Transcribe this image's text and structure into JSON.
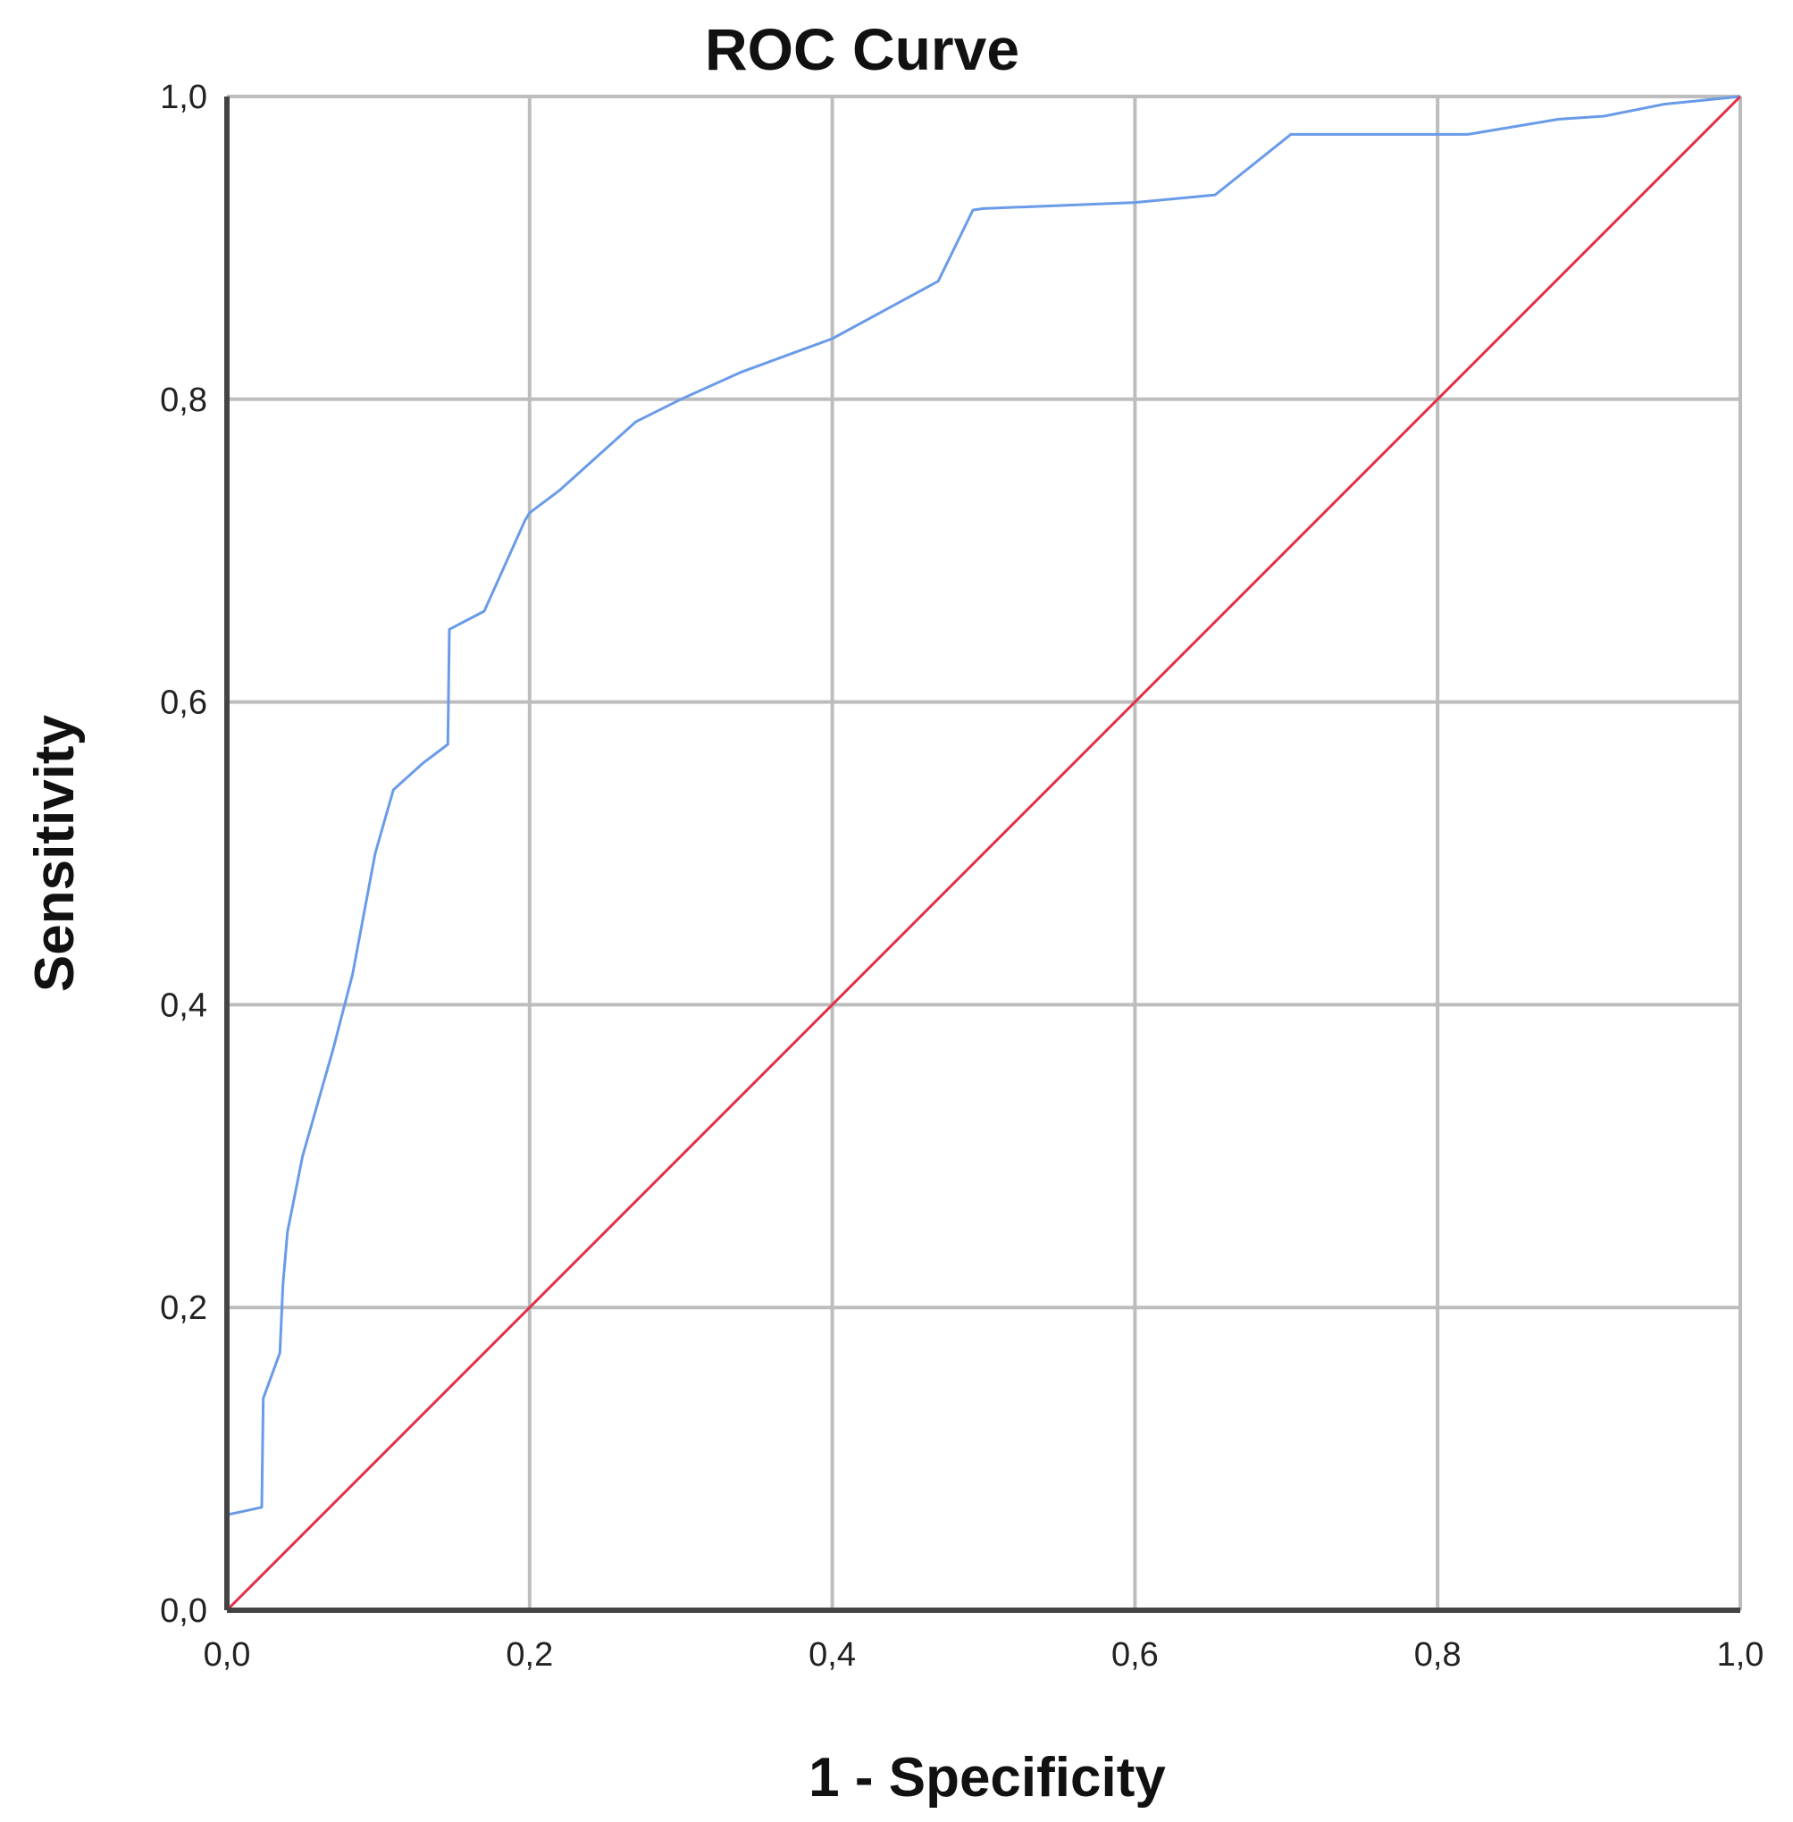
{
  "chart_data": {
    "type": "line",
    "title": "ROC Curve",
    "xlabel": "1 - Specificity",
    "ylabel": "Sensitivity",
    "xlim": [
      0,
      1
    ],
    "ylim": [
      0,
      1
    ],
    "xticks": [
      "0,0",
      "0,2",
      "0,4",
      "0,6",
      "0,8",
      "1,0"
    ],
    "yticks": [
      "0,0",
      "0,2",
      "0,4",
      "0,6",
      "0,8",
      "1,0"
    ],
    "tick_values": [
      0,
      0.2,
      0.4,
      0.6,
      0.8,
      1.0
    ],
    "grid": true,
    "series": [
      {
        "color": "#6a9be8",
        "x": [
          0.0,
          0.0,
          0.023,
          0.024,
          0.035,
          0.037,
          0.04,
          0.05,
          0.07,
          0.083,
          0.098,
          0.11,
          0.13,
          0.146,
          0.147,
          0.17,
          0.197,
          0.2,
          0.22,
          0.27,
          0.3,
          0.34,
          0.4,
          0.47,
          0.493,
          0.5,
          0.6,
          0.653,
          0.703,
          0.82,
          0.88,
          0.91,
          0.95,
          1.0
        ],
        "y": [
          0.0,
          0.063,
          0.068,
          0.14,
          0.17,
          0.215,
          0.25,
          0.3,
          0.37,
          0.42,
          0.5,
          0.542,
          0.56,
          0.572,
          0.648,
          0.66,
          0.72,
          0.725,
          0.74,
          0.785,
          0.8,
          0.818,
          0.84,
          0.878,
          0.925,
          0.926,
          0.93,
          0.935,
          0.975,
          0.975,
          0.985,
          0.987,
          0.995,
          1.0
        ]
      },
      {
        "color": "#e23048",
        "x": [
          0,
          1
        ],
        "y": [
          0,
          1
        ]
      }
    ]
  }
}
